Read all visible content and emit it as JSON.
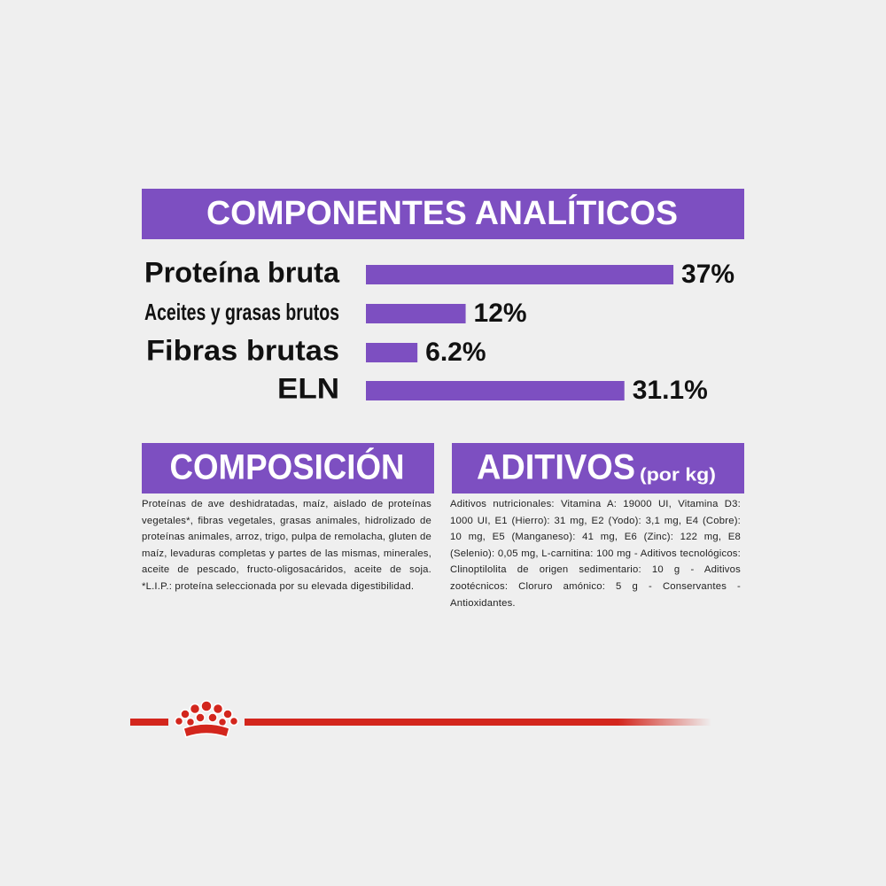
{
  "chart_data": {
    "type": "bar",
    "title": "COMPONENTES ANALÍTICOS",
    "categories": [
      "Proteína bruta",
      "Aceites y grasas brutos",
      "Fibras brutas",
      "ELN"
    ],
    "values": [
      37,
      12,
      6.2,
      31.1
    ],
    "value_labels": [
      "37%",
      "12%",
      "6.2%",
      "31.1%"
    ],
    "color": "#7d4fc1"
  },
  "composicion": {
    "title": "COMPOSICIÓN",
    "text": "Proteínas de ave deshidratadas, maíz, aislado de proteínas vegetales*, fibras vegetales, grasas animales, hidrolizado de proteínas animales, arroz, trigo, pulpa de remolacha, gluten de maíz, levaduras completas y partes de las mismas, minerales, aceite de pescado, fructo-oligosacáridos, aceite de soja. *L.I.P.: proteína seleccionada por su elevada digestibilidad."
  },
  "aditivos": {
    "title": "ADITIVOS",
    "unit": "(por kg)",
    "text": "Aditivos nutricionales: Vitamina A: 19000 UI, Vitamina D3: 1000 UI, E1 (Hierro): 31 mg, E2 (Yodo): 3,1 mg, E4 (Cobre): 10 mg, E5 (Manganeso): 41 mg, E6 (Zinc): 122 mg, E8 (Selenio): 0,05 mg, L-carnitina: 100 mg - Aditivos tecnológicos: Clinoptilolita de origen sedimentario: 10 g - Aditivos zootécnicos: Cloruro amónico: 5 g - Conservantes - Antioxidantes."
  }
}
